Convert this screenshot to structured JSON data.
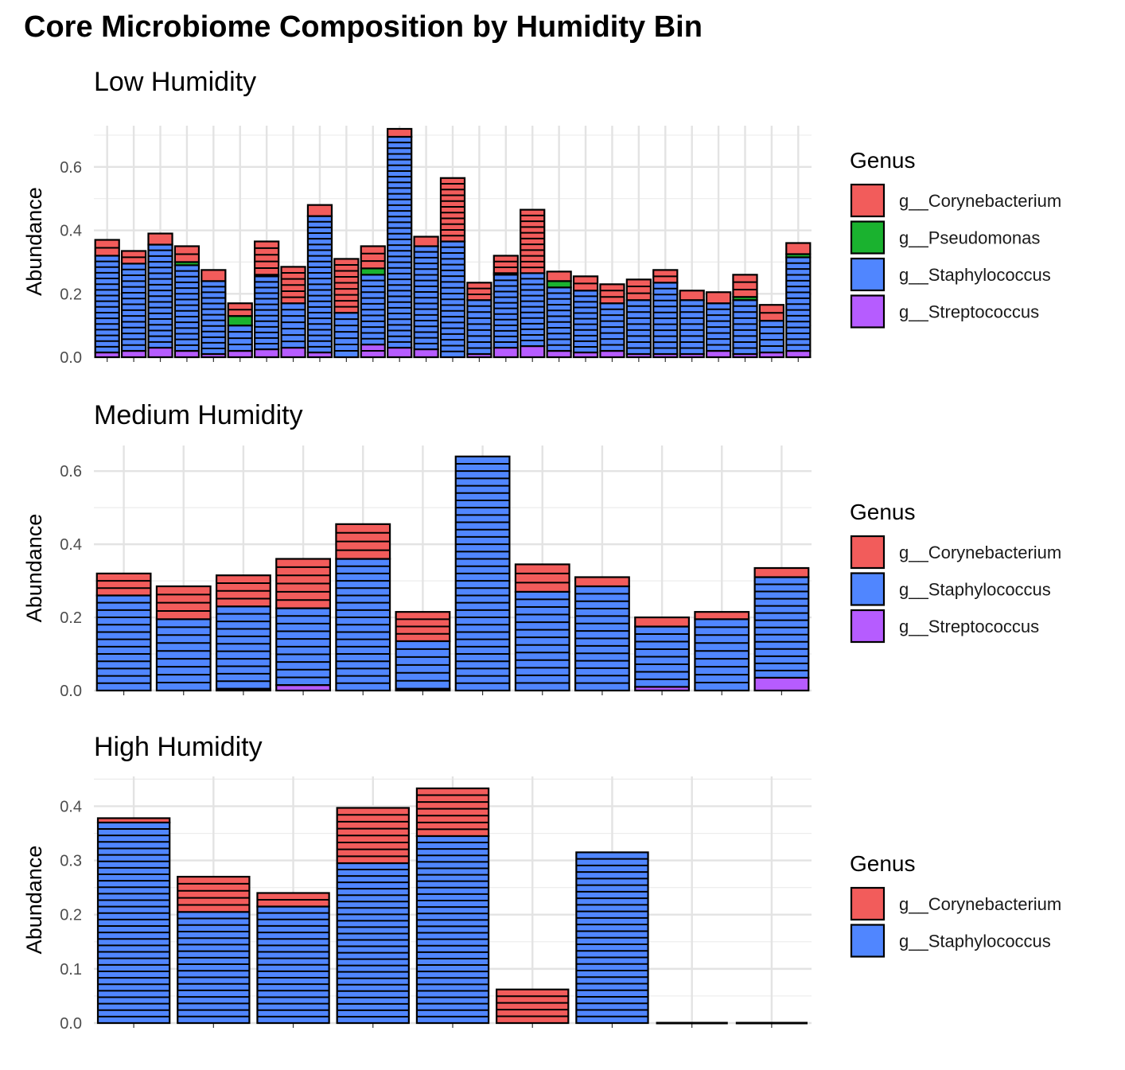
{
  "title": "Core Microbiome Composition by Humidity Bin",
  "colors": {
    "g__Corynebacterium": "#f25c5b",
    "g__Pseudomonas": "#1ab22f",
    "g__Staphylococcus": "#5086ff",
    "g__Streptococcus": "#b65cff"
  },
  "chart_data": [
    {
      "type": "bar",
      "stacked": true,
      "title": "Low Humidity",
      "xlabel": "",
      "ylabel": "Abundance",
      "ylim": [
        0,
        0.73
      ],
      "yticks": [
        0.0,
        0.2,
        0.4,
        0.6
      ],
      "grid": true,
      "legend_position": "right",
      "legend": {
        "title": "Genus",
        "items": [
          "g__Corynebacterium",
          "g__Pseudomonas",
          "g__Staphylococcus",
          "g__Streptococcus"
        ]
      },
      "genus_order": [
        "g__Streptococcus",
        "g__Staphylococcus",
        "g__Pseudomonas",
        "g__Corynebacterium"
      ],
      "bars": [
        {
          "g__Streptococcus": 0.015,
          "g__Staphylococcus": 0.305,
          "g__Pseudomonas": 0.0,
          "g__Corynebacterium": 0.05
        },
        {
          "g__Streptococcus": 0.02,
          "g__Staphylococcus": 0.275,
          "g__Pseudomonas": 0.0,
          "g__Corynebacterium": 0.04
        },
        {
          "g__Streptococcus": 0.03,
          "g__Staphylococcus": 0.325,
          "g__Pseudomonas": 0.0,
          "g__Corynebacterium": 0.035
        },
        {
          "g__Streptococcus": 0.02,
          "g__Staphylococcus": 0.27,
          "g__Pseudomonas": 0.01,
          "g__Corynebacterium": 0.05
        },
        {
          "g__Streptococcus": 0.01,
          "g__Staphylococcus": 0.23,
          "g__Pseudomonas": 0.0,
          "g__Corynebacterium": 0.035
        },
        {
          "g__Streptococcus": 0.02,
          "g__Staphylococcus": 0.08,
          "g__Pseudomonas": 0.03,
          "g__Corynebacterium": 0.04
        },
        {
          "g__Streptococcus": 0.025,
          "g__Staphylococcus": 0.23,
          "g__Pseudomonas": 0.005,
          "g__Corynebacterium": 0.105
        },
        {
          "g__Streptococcus": 0.03,
          "g__Staphylococcus": 0.14,
          "g__Pseudomonas": 0.0,
          "g__Corynebacterium": 0.115
        },
        {
          "g__Streptococcus": 0.015,
          "g__Staphylococcus": 0.43,
          "g__Pseudomonas": 0.0,
          "g__Corynebacterium": 0.035
        },
        {
          "g__Streptococcus": 0.0,
          "g__Staphylococcus": 0.14,
          "g__Pseudomonas": 0.0,
          "g__Corynebacterium": 0.17
        },
        {
          "g__Streptococcus": 0.04,
          "g__Staphylococcus": 0.22,
          "g__Pseudomonas": 0.02,
          "g__Corynebacterium": 0.07
        },
        {
          "g__Streptococcus": 0.03,
          "g__Staphylococcus": 0.665,
          "g__Pseudomonas": 0.0,
          "g__Corynebacterium": 0.025
        },
        {
          "g__Streptococcus": 0.025,
          "g__Staphylococcus": 0.325,
          "g__Pseudomonas": 0.0,
          "g__Corynebacterium": 0.03
        },
        {
          "g__Streptococcus": 0.0,
          "g__Staphylococcus": 0.365,
          "g__Pseudomonas": 0.0,
          "g__Corynebacterium": 0.2
        },
        {
          "g__Streptococcus": 0.01,
          "g__Staphylococcus": 0.17,
          "g__Pseudomonas": 0.0,
          "g__Corynebacterium": 0.055
        },
        {
          "g__Streptococcus": 0.03,
          "g__Staphylococcus": 0.23,
          "g__Pseudomonas": 0.005,
          "g__Corynebacterium": 0.055
        },
        {
          "g__Streptococcus": 0.035,
          "g__Staphylococcus": 0.23,
          "g__Pseudomonas": 0.0,
          "g__Corynebacterium": 0.2
        },
        {
          "g__Streptococcus": 0.02,
          "g__Staphylococcus": 0.2,
          "g__Pseudomonas": 0.02,
          "g__Corynebacterium": 0.03
        },
        {
          "g__Streptococcus": 0.015,
          "g__Staphylococcus": 0.195,
          "g__Pseudomonas": 0.0,
          "g__Corynebacterium": 0.045
        },
        {
          "g__Streptococcus": 0.02,
          "g__Staphylococcus": 0.15,
          "g__Pseudomonas": 0.0,
          "g__Corynebacterium": 0.06
        },
        {
          "g__Streptococcus": 0.01,
          "g__Staphylococcus": 0.17,
          "g__Pseudomonas": 0.0,
          "g__Corynebacterium": 0.065
        },
        {
          "g__Streptococcus": 0.01,
          "g__Staphylococcus": 0.225,
          "g__Pseudomonas": 0.0,
          "g__Corynebacterium": 0.04
        },
        {
          "g__Streptococcus": 0.01,
          "g__Staphylococcus": 0.17,
          "g__Pseudomonas": 0.0,
          "g__Corynebacterium": 0.03
        },
        {
          "g__Streptococcus": 0.02,
          "g__Staphylococcus": 0.15,
          "g__Pseudomonas": 0.0,
          "g__Corynebacterium": 0.035
        },
        {
          "g__Streptococcus": 0.01,
          "g__Staphylococcus": 0.17,
          "g__Pseudomonas": 0.01,
          "g__Corynebacterium": 0.07
        },
        {
          "g__Streptococcus": 0.015,
          "g__Staphylococcus": 0.1,
          "g__Pseudomonas": 0.0,
          "g__Corynebacterium": 0.05
        },
        {
          "g__Streptococcus": 0.02,
          "g__Staphylococcus": 0.295,
          "g__Pseudomonas": 0.01,
          "g__Corynebacterium": 0.035
        }
      ]
    },
    {
      "type": "bar",
      "stacked": true,
      "title": "Medium Humidity",
      "xlabel": "",
      "ylabel": "Abundance",
      "ylim": [
        0,
        0.67
      ],
      "yticks": [
        0.0,
        0.2,
        0.4,
        0.6
      ],
      "grid": true,
      "legend_position": "right",
      "legend": {
        "title": "Genus",
        "items": [
          "g__Corynebacterium",
          "g__Staphylococcus",
          "g__Streptococcus"
        ]
      },
      "genus_order": [
        "g__Streptococcus",
        "g__Staphylococcus",
        "g__Corynebacterium"
      ],
      "bars": [
        {
          "g__Streptococcus": 0.0,
          "g__Staphylococcus": 0.26,
          "g__Corynebacterium": 0.06
        },
        {
          "g__Streptococcus": 0.0,
          "g__Staphylococcus": 0.195,
          "g__Corynebacterium": 0.09
        },
        {
          "g__Streptococcus": 0.005,
          "g__Staphylococcus": 0.225,
          "g__Corynebacterium": 0.085
        },
        {
          "g__Streptococcus": 0.015,
          "g__Staphylococcus": 0.21,
          "g__Corynebacterium": 0.135
        },
        {
          "g__Streptococcus": 0.0,
          "g__Staphylococcus": 0.36,
          "g__Corynebacterium": 0.095
        },
        {
          "g__Streptococcus": 0.005,
          "g__Staphylococcus": 0.13,
          "g__Corynebacterium": 0.08
        },
        {
          "g__Streptococcus": 0.0,
          "g__Staphylococcus": 0.64,
          "g__Corynebacterium": 0.0
        },
        {
          "g__Streptococcus": 0.0,
          "g__Staphylococcus": 0.27,
          "g__Corynebacterium": 0.075
        },
        {
          "g__Streptococcus": 0.0,
          "g__Staphylococcus": 0.285,
          "g__Corynebacterium": 0.025
        },
        {
          "g__Streptococcus": 0.01,
          "g__Staphylococcus": 0.165,
          "g__Corynebacterium": 0.025
        },
        {
          "g__Streptococcus": 0.0,
          "g__Staphylococcus": 0.195,
          "g__Corynebacterium": 0.02
        },
        {
          "g__Streptococcus": 0.035,
          "g__Staphylococcus": 0.275,
          "g__Corynebacterium": 0.025
        }
      ]
    },
    {
      "type": "bar",
      "stacked": true,
      "title": "High Humidity",
      "xlabel": "",
      "ylabel": "Abundance",
      "ylim": [
        0,
        0.455
      ],
      "yticks": [
        0.0,
        0.1,
        0.2,
        0.3,
        0.4
      ],
      "grid": true,
      "legend_position": "right",
      "legend": {
        "title": "Genus",
        "items": [
          "g__Corynebacterium",
          "g__Staphylococcus"
        ]
      },
      "genus_order": [
        "g__Staphylococcus",
        "g__Corynebacterium"
      ],
      "bars": [
        {
          "g__Staphylococcus": 0.37,
          "g__Corynebacterium": 0.008
        },
        {
          "g__Staphylococcus": 0.205,
          "g__Corynebacterium": 0.065
        },
        {
          "g__Staphylococcus": 0.215,
          "g__Corynebacterium": 0.025
        },
        {
          "g__Staphylococcus": 0.295,
          "g__Corynebacterium": 0.102
        },
        {
          "g__Staphylococcus": 0.345,
          "g__Corynebacterium": 0.088
        },
        {
          "g__Staphylococcus": 0.0,
          "g__Corynebacterium": 0.062
        },
        {
          "g__Staphylococcus": 0.315,
          "g__Corynebacterium": 0.0
        },
        {
          "g__Staphylococcus": 0.0,
          "g__Corynebacterium": 0.0
        },
        {
          "g__Staphylococcus": 0.0,
          "g__Corynebacterium": 0.0
        }
      ]
    }
  ]
}
